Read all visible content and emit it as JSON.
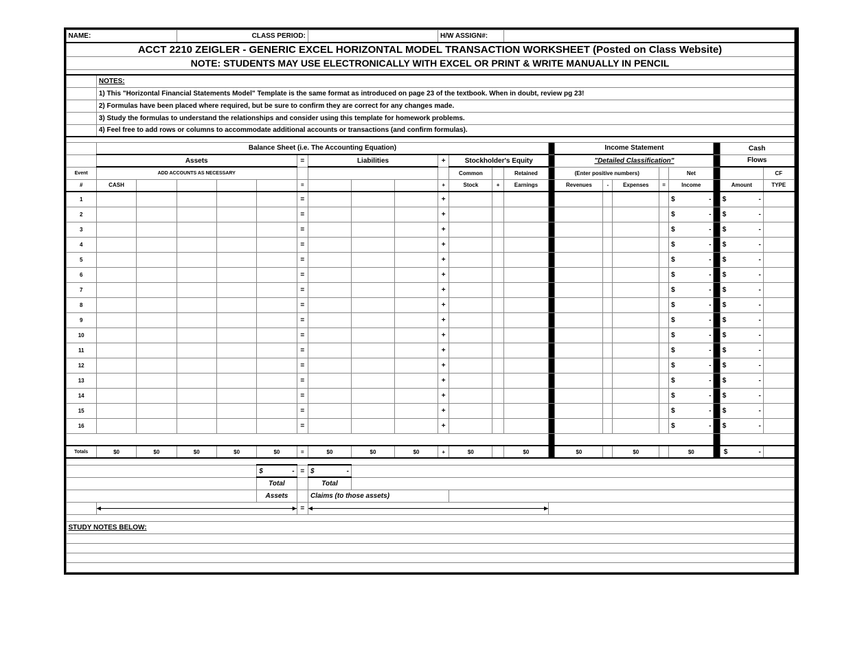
{
  "header": {
    "name_label": "NAME:",
    "class_period_label": "CLASS PERIOD:",
    "hw_assign_label": "H/W ASSIGN#:",
    "title1": "ACCT 2210 ZEIGLER - GENERIC EXCEL HORIZONTAL MODEL TRANSACTION WORKSHEET (Posted on Class Website)",
    "title2": "NOTE: STUDENTS MAY USE ELECTRONICALLY WITH EXCEL OR PRINT & WRITE MANUALLY IN PENCIL"
  },
  "notes": {
    "heading": "NOTES:",
    "n1": "1) This \"Horizontal Financial Statements Model\" Template is the same format as introduced on page 23 of the textbook. When in doubt, review pg 23!",
    "n2": "2) Formulas have been placed where required, but be sure to confirm they are correct for any changes made.",
    "n3": "3) Study the formulas to understand the relationships and consider using this template for homework problems.",
    "n4": "4) Feel free to add rows or columns to accommodate additional accounts or transactions (and confirm formulas)."
  },
  "sections": {
    "balance_sheet": "Balance Sheet (i.e. The Accounting Equation)",
    "income_statement": "Income Statement",
    "cash": "Cash",
    "assets": "Assets",
    "liabilities": "Liabilities",
    "stockholders_equity": "Stockholder's Equity",
    "detailed_classification": "\"Detailed Classification\"",
    "flows": "Flows",
    "event": "Event",
    "add_accounts": "ADD ACCOUNTS AS NECESSARY",
    "common": "Common",
    "retained": "Retained",
    "enter_positive": "(Enter positive numbers)",
    "net": "Net",
    "hash": "#",
    "cash_col": "CASH",
    "stock": "Stock",
    "earnings": "Earnings",
    "revenues": "Revenues",
    "expenses": "Expenses",
    "income": "Income",
    "amount": "Amount",
    "type": "TYPE",
    "cf": "CF",
    "eq": "=",
    "plus": "+",
    "minus": "-",
    "totals": "Totals",
    "zero": "$0",
    "dash_dollar_left": "$",
    "dash_dollar_right": "-",
    "total": "Total",
    "assets_lbl": "Assets",
    "claims": "Claims (to those assets)",
    "study_notes": "STUDY NOTES BELOW:"
  },
  "rows": [
    "1",
    "2",
    "3",
    "4",
    "5",
    "6",
    "7",
    "8",
    "9",
    "10",
    "11",
    "12",
    "13",
    "14",
    "15",
    "16"
  ]
}
